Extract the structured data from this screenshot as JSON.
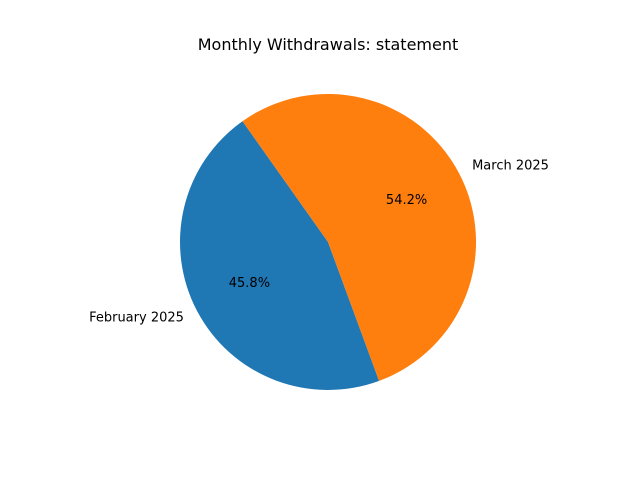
{
  "chart_data": {
    "type": "pie",
    "title": "Monthly Withdrawals: statement",
    "labels": [
      "February 2025",
      "March 2025"
    ],
    "values": [
      45.8,
      54.2
    ],
    "percent_labels": [
      "45.8%",
      "54.2%"
    ],
    "colors": [
      "#1f77b4",
      "#ff7f0e"
    ],
    "start_angle_deg": 125.3,
    "direction": "counterclockwise",
    "legend": "none"
  }
}
